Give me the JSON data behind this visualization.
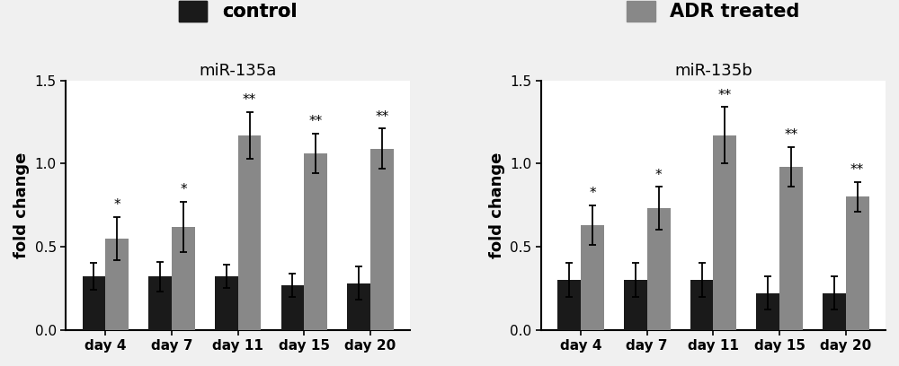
{
  "background_color": "#ffffff",
  "fig_background": "#f0f0f0",
  "panels": [
    {
      "title": "miR-135a",
      "ylabel": "fold change",
      "ylim": [
        0,
        1.5
      ],
      "yticks": [
        0.0,
        0.5,
        1.0,
        1.5
      ],
      "categories": [
        "day 4",
        "day 7",
        "day 11",
        "day 15",
        "day 20"
      ],
      "control_values": [
        0.32,
        0.32,
        0.32,
        0.27,
        0.28
      ],
      "control_errors": [
        0.08,
        0.09,
        0.07,
        0.07,
        0.1
      ],
      "adr_values": [
        0.55,
        0.62,
        1.17,
        1.06,
        1.09
      ],
      "adr_errors": [
        0.13,
        0.15,
        0.14,
        0.12,
        0.12
      ],
      "adr_sig": [
        "*",
        "*",
        "**",
        "**",
        "**"
      ],
      "legend_label": "control",
      "legend_color": "#1a1a1a",
      "legend_side": "left"
    },
    {
      "title": "miR-135b",
      "ylabel": "fold change",
      "ylim": [
        0,
        1.5
      ],
      "yticks": [
        0.0,
        0.5,
        1.0,
        1.5
      ],
      "categories": [
        "day 4",
        "day 7",
        "day 11",
        "day 15",
        "day 20"
      ],
      "control_values": [
        0.3,
        0.3,
        0.3,
        0.22,
        0.22
      ],
      "control_errors": [
        0.1,
        0.1,
        0.1,
        0.1,
        0.1
      ],
      "adr_values": [
        0.63,
        0.73,
        1.17,
        0.98,
        0.8
      ],
      "adr_errors": [
        0.12,
        0.13,
        0.17,
        0.12,
        0.09
      ],
      "adr_sig": [
        "*",
        "*",
        "**",
        "**",
        "**"
      ],
      "legend_label": "ADR treated",
      "legend_color": "#888888",
      "legend_side": "right"
    }
  ],
  "control_color": "#1a1a1a",
  "adr_color": "#888888",
  "bar_width": 0.35,
  "sig_fontsize": 11,
  "title_fontsize": 13,
  "ylabel_fontsize": 13,
  "tick_fontsize": 11,
  "legend_fontsize": 15
}
